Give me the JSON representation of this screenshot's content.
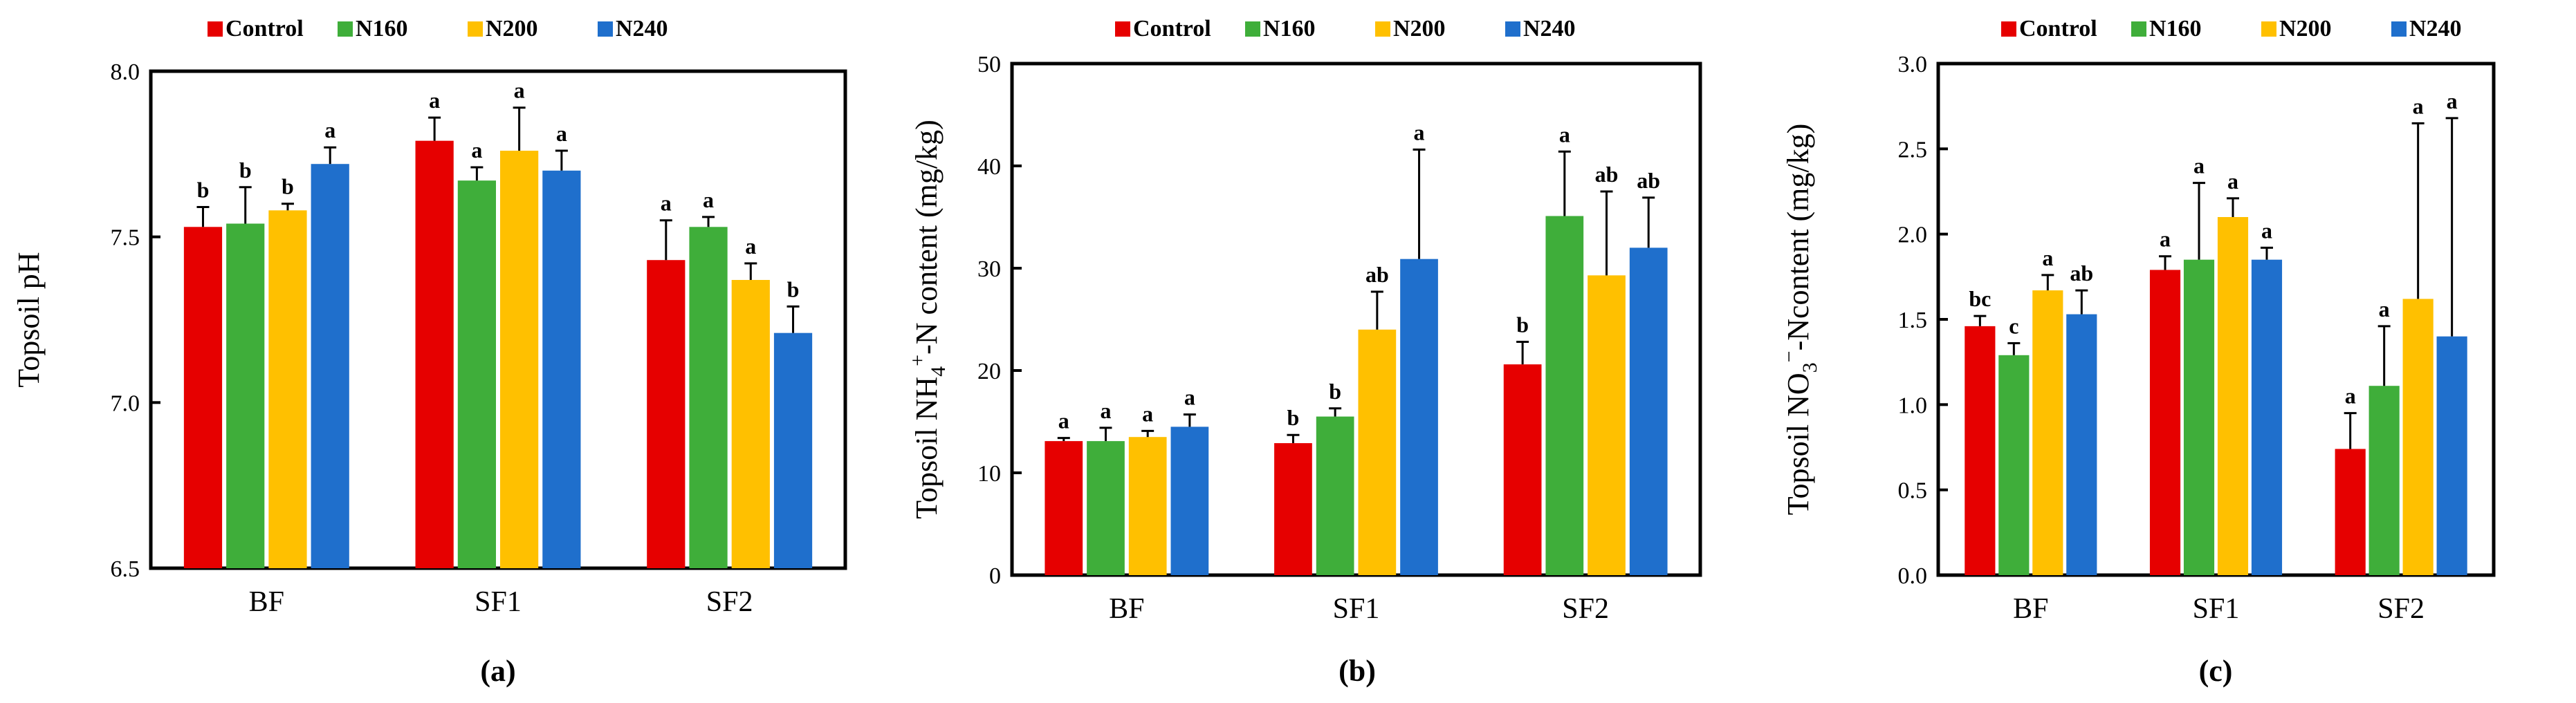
{
  "chart_data": [
    {
      "type": "bar",
      "panel_label": "(a)",
      "ylabel": "Topsoil pH",
      "ylabel_sub": "",
      "ylabel_sup": "",
      "ylabel_tail": "",
      "ylim": [
        6.5,
        8.0
      ],
      "yticks": [
        6.5,
        7.0,
        7.5,
        8.0
      ],
      "ytick_labels": [
        "6.5",
        "7.0",
        "7.5",
        "8.0"
      ],
      "categories": [
        "BF",
        "SF1",
        "SF2"
      ],
      "legend_position": "top",
      "series": [
        {
          "name": "Control",
          "color": "#e60000",
          "values": [
            7.53,
            7.79,
            7.43
          ],
          "errors": [
            0.06,
            0.07,
            0.12
          ],
          "letters": [
            "b",
            "a",
            "a"
          ]
        },
        {
          "name": "N160",
          "color": "#3fae3a",
          "values": [
            7.54,
            7.67,
            7.53
          ],
          "errors": [
            0.11,
            0.04,
            0.03
          ],
          "letters": [
            "b",
            "a",
            "a"
          ]
        },
        {
          "name": "N200",
          "color": "#ffc000",
          "values": [
            7.58,
            7.76,
            7.37
          ],
          "errors": [
            0.02,
            0.13,
            0.05
          ],
          "letters": [
            "b",
            "a",
            "a"
          ]
        },
        {
          "name": "N240",
          "color": "#1f6fcc",
          "values": [
            7.72,
            7.7,
            7.21
          ],
          "errors": [
            0.05,
            0.06,
            0.08
          ],
          "letters": [
            "a",
            "a",
            "b"
          ]
        }
      ]
    },
    {
      "type": "bar",
      "panel_label": "(b)",
      "ylabel": "Topsoil NH",
      "ylabel_sub": "4",
      "ylabel_sup": "+",
      "ylabel_tail": "-N content (mg/kg)",
      "ylim": [
        0,
        50
      ],
      "yticks": [
        0,
        10,
        20,
        30,
        40,
        50
      ],
      "ytick_labels": [
        "0",
        "10",
        "20",
        "30",
        "40",
        "50"
      ],
      "categories": [
        "BF",
        "SF1",
        "SF2"
      ],
      "legend_position": "top",
      "series": [
        {
          "name": "Control",
          "color": "#e60000",
          "values": [
            13.1,
            12.9,
            20.6
          ],
          "errors": [
            0.3,
            0.8,
            2.2
          ],
          "letters": [
            "a",
            "b",
            "b"
          ]
        },
        {
          "name": "N160",
          "color": "#3fae3a",
          "values": [
            13.1,
            15.5,
            35.1
          ],
          "errors": [
            1.3,
            0.8,
            6.3
          ],
          "letters": [
            "a",
            "b",
            "a"
          ]
        },
        {
          "name": "N200",
          "color": "#ffc000",
          "values": [
            13.5,
            24.0,
            29.3
          ],
          "errors": [
            0.6,
            3.7,
            8.2
          ],
          "letters": [
            "a",
            "ab",
            "ab"
          ]
        },
        {
          "name": "N240",
          "color": "#1f6fcc",
          "values": [
            14.5,
            30.9,
            32.0
          ],
          "errors": [
            1.2,
            10.7,
            4.9
          ],
          "letters": [
            "a",
            "a",
            "ab"
          ]
        }
      ]
    },
    {
      "type": "bar",
      "panel_label": "(c)",
      "ylabel": "Topsoil NO",
      "ylabel_sub": "3",
      "ylabel_sup": "−",
      "ylabel_tail": "-Ncontent (mg/kg)",
      "ylim": [
        0.0,
        3.0
      ],
      "yticks": [
        0.0,
        0.5,
        1.0,
        1.5,
        2.0,
        2.5,
        3.0
      ],
      "ytick_labels": [
        "0.0",
        "0.5",
        "1.0",
        "1.5",
        "2.0",
        "2.5",
        "3.0"
      ],
      "categories": [
        "BF",
        "SF1",
        "SF2"
      ],
      "legend_position": "top",
      "series": [
        {
          "name": "Control",
          "color": "#e60000",
          "values": [
            1.46,
            1.79,
            0.74
          ],
          "errors": [
            0.06,
            0.08,
            0.21
          ],
          "letters": [
            "bc",
            "a",
            "a"
          ]
        },
        {
          "name": "N160",
          "color": "#3fae3a",
          "values": [
            1.29,
            1.85,
            1.11
          ],
          "errors": [
            0.07,
            0.45,
            0.35
          ],
          "letters": [
            "c",
            "a",
            "a"
          ]
        },
        {
          "name": "N200",
          "color": "#ffc000",
          "values": [
            1.67,
            2.1,
            1.62
          ],
          "errors": [
            0.09,
            0.11,
            1.03
          ],
          "letters": [
            "a",
            "a",
            "a"
          ]
        },
        {
          "name": "N240",
          "color": "#1f6fcc",
          "values": [
            1.53,
            1.85,
            1.4
          ],
          "errors": [
            0.14,
            0.07,
            1.28
          ],
          "letters": [
            "ab",
            "a",
            "a"
          ]
        }
      ]
    }
  ]
}
